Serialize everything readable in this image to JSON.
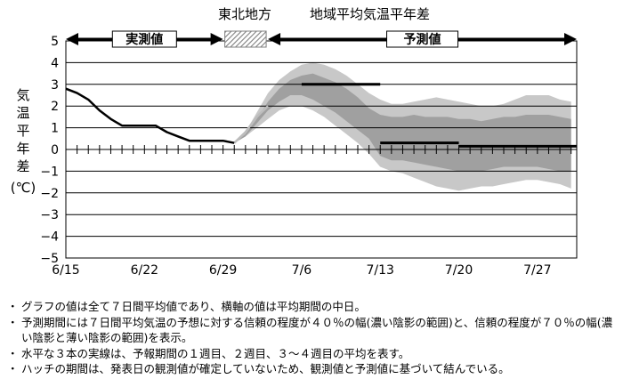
{
  "chart_data": {
    "type": "line",
    "title_region": "東北地方",
    "title_main": "地域平均気温平年差",
    "ylabel_chars": [
      "気",
      "温",
      "平",
      "年",
      "差",
      "(℃)"
    ],
    "ylim": [
      -5,
      5
    ],
    "y_ticks": [
      "5",
      "4",
      "3",
      "2",
      "1",
      "0",
      "−1",
      "−2",
      "−3",
      "−4",
      "−5"
    ],
    "x_ticks": [
      {
        "label": "6/15",
        "day": 0
      },
      {
        "label": "6/22",
        "day": 7
      },
      {
        "label": "6/29",
        "day": 14
      },
      {
        "label": "7/6",
        "day": 21
      },
      {
        "label": "7/13",
        "day": 28
      },
      {
        "label": "7/20",
        "day": 35
      },
      {
        "label": "7/27",
        "day": 42
      }
    ],
    "period_labels": {
      "observed": "実測値",
      "forecast": "予測値"
    },
    "observed": {
      "x": [
        0,
        1,
        2,
        3,
        4,
        5,
        6,
        7,
        8,
        9,
        10,
        11,
        12,
        13,
        14,
        15
      ],
      "y": [
        2.8,
        2.6,
        2.3,
        1.8,
        1.4,
        1.1,
        1.1,
        1.1,
        1.1,
        0.8,
        0.6,
        0.4,
        0.4,
        0.4,
        0.4,
        0.3
      ]
    },
    "hatch_connection": {
      "x": [
        15,
        16,
        17,
        18
      ],
      "y": [
        0.3,
        0.8,
        1.5,
        2.0
      ]
    },
    "band_70": {
      "x": [
        15,
        16,
        17,
        18,
        19,
        20,
        21,
        22,
        23,
        24,
        25,
        26,
        27,
        28,
        29,
        30,
        31,
        32,
        33,
        34,
        35,
        36,
        37,
        38,
        39,
        40,
        41,
        42,
        43,
        44,
        45
      ],
      "upper": [
        0.3,
        0.8,
        1.7,
        2.6,
        3.2,
        3.6,
        3.9,
        4.0,
        3.9,
        3.7,
        3.4,
        3.0,
        2.6,
        2.3,
        2.1,
        2.1,
        2.2,
        2.3,
        2.4,
        2.3,
        2.2,
        2.1,
        2.0,
        2.0,
        2.1,
        2.3,
        2.5,
        2.5,
        2.5,
        2.3,
        2.2
      ],
      "lower": [
        0.3,
        0.6,
        1.0,
        1.4,
        1.8,
        2.0,
        2.0,
        1.8,
        1.5,
        1.1,
        0.7,
        0.3,
        -0.2,
        -0.8,
        -1.0,
        -1.1,
        -1.3,
        -1.5,
        -1.7,
        -1.8,
        -1.9,
        -1.8,
        -1.7,
        -1.7,
        -1.6,
        -1.5,
        -1.4,
        -1.4,
        -1.5,
        -1.6,
        -1.8
      ]
    },
    "band_40": {
      "x": [
        15,
        16,
        17,
        18,
        19,
        20,
        21,
        22,
        23,
        24,
        25,
        26,
        27,
        28,
        29,
        30,
        31,
        32,
        33,
        34,
        35,
        36,
        37,
        38,
        39,
        40,
        41,
        42,
        43,
        44,
        45
      ],
      "upper": [
        0.3,
        0.7,
        1.4,
        2.2,
        2.8,
        3.2,
        3.4,
        3.5,
        3.3,
        3.1,
        2.8,
        2.4,
        1.9,
        1.6,
        1.5,
        1.5,
        1.6,
        1.5,
        1.5,
        1.5,
        1.4,
        1.4,
        1.3,
        1.4,
        1.5,
        1.5,
        1.6,
        1.6,
        1.6,
        1.5,
        1.4
      ],
      "lower": [
        0.3,
        0.6,
        1.2,
        1.8,
        2.2,
        2.5,
        2.5,
        2.3,
        2.0,
        1.7,
        1.3,
        0.9,
        0.5,
        -0.3,
        -0.5,
        -0.5,
        -0.6,
        -0.7,
        -0.8,
        -0.9,
        -1.0,
        -1.0,
        -1.0,
        -0.9,
        -0.8,
        -0.8,
        -0.8,
        -0.8,
        -0.9,
        -1.0,
        -1.0
      ]
    },
    "week_means": [
      {
        "week": "1",
        "x": [
          21,
          28
        ],
        "y": 3.0
      },
      {
        "week": "2",
        "x": [
          28,
          35
        ],
        "y": 0.3
      },
      {
        "week": "3-4",
        "x": [
          35,
          49
        ],
        "y": 0.15
      }
    ],
    "x_max_day": 45.5,
    "colors": {
      "band_70": "#c8c8c8",
      "band_40": "#a0a0a0",
      "line": "#000000",
      "hatch": "#808080",
      "grid": "#000000"
    },
    "grid": true
  },
  "notes": [
    {
      "bullet": "・",
      "text": "グラフの値は全て７日間平均値であり、横軸の値は平均期間の中日。"
    },
    {
      "bullet": "・",
      "text": "予測期間には７日間平均気温の予想に対する信頼の程度が４０％の幅(濃い陰影の範囲)と、信頼の程度が７０％の幅(濃い陰影と薄い陰影の範囲)を表示。"
    },
    {
      "bullet": "・",
      "text": "水平な３本の実線は、予報期間の１週目、２週目、３～４週目の平均を表す。"
    },
    {
      "bullet": "・",
      "text": "ハッチの期間は、発表日の観測値が確定していないため、観測値と予測値に基づいて結んでいる。"
    }
  ]
}
